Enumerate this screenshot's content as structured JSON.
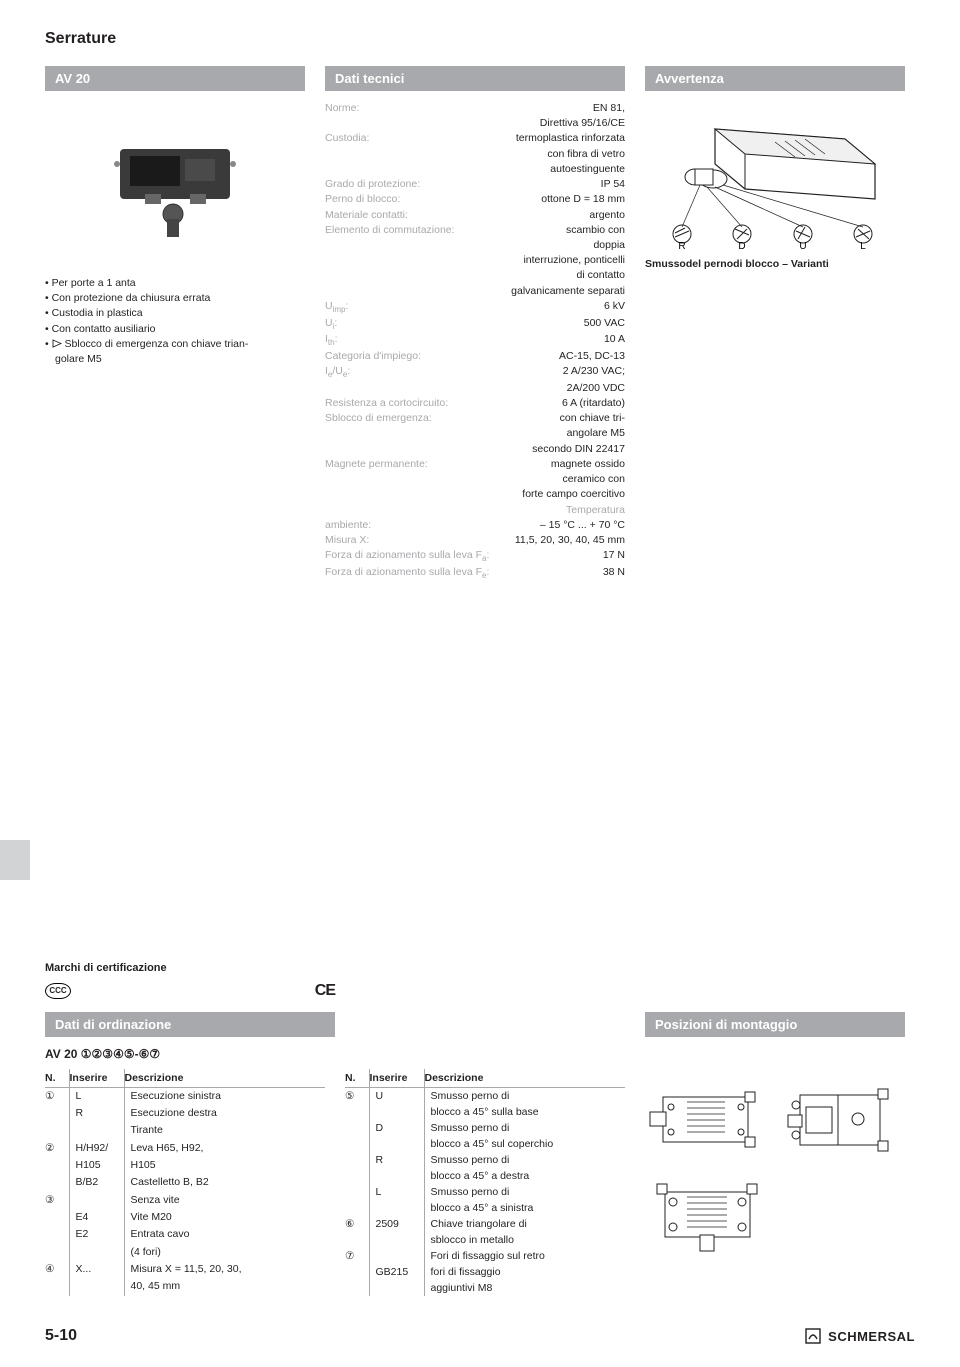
{
  "page_title": "Serrature",
  "left": {
    "header": "AV 20",
    "bullets": [
      "Per porte a 1 anta",
      "Con protezione da chiusura errata",
      "Custodia in plastica",
      "Con contatto ausiliario"
    ],
    "bullet_triangle": "Sblocco di emergenza con chiave trian-",
    "bullet_triangle_cont": "golare M5"
  },
  "mid": {
    "header": "Dati tecnici",
    "rows": [
      {
        "label": "Norme:",
        "value": "EN 81,"
      },
      {
        "label": "",
        "value": "Direttiva 95/16/CE"
      },
      {
        "label": "Custodia:",
        "value": "termoplastica rinforzata"
      },
      {
        "label": "",
        "value": "con fibra di vetro"
      },
      {
        "label": "",
        "value": "autoestinguente"
      },
      {
        "label": "Grado di protezione:",
        "value": "IP 54"
      },
      {
        "label": "Perno di blocco:",
        "value": "ottone D = 18 mm"
      },
      {
        "label": "Materiale contatti:",
        "value": "argento"
      },
      {
        "label": "Elemento di commutazione:",
        "value": "scambio con"
      },
      {
        "label": "",
        "value": "doppia"
      },
      {
        "label": "",
        "value": "interruzione, ponticelli"
      },
      {
        "label": "",
        "value": "di contatto"
      },
      {
        "label": "",
        "value": "galvanicamente separati"
      },
      {
        "label": "U<sub>imp</sub>:",
        "value": "6 kV"
      },
      {
        "label": "U<sub>i</sub>:",
        "value": "500 VAC"
      },
      {
        "label": "I<sub>th</sub>:",
        "value": "10 A"
      },
      {
        "label": "Categoria d'impiego:",
        "value": "AC-15, DC-13"
      },
      {
        "label": "I<sub>e</sub>/U<sub>e</sub>:",
        "value": "2 A/230 VAC;"
      },
      {
        "label": "",
        "value": "2A/200 VDC"
      },
      {
        "label": "Resistenza a cortocircuito:",
        "value": "6 A (ritardato)"
      },
      {
        "label": "Sblocco di emergenza:",
        "value": "con chiave tri-"
      },
      {
        "label": "",
        "value": "angolare M5"
      },
      {
        "label": "",
        "value": "secondo DIN 22417"
      },
      {
        "label": "Magnete permanente:",
        "value": "magnete ossido"
      },
      {
        "label": "",
        "value": "ceramico con"
      },
      {
        "label": "",
        "value": "forte campo coercitivo"
      }
    ],
    "temp_label": "Temperatura",
    "rows2": [
      {
        "label": "ambiente:",
        "value": "– 15 °C ... + 70 °C"
      },
      {
        "label": "Misura X:",
        "value": "11,5, 20, 30, 40, 45 mm"
      },
      {
        "label": "Forza di azionamento sulla leva F<sub>a</sub>:",
        "value": "17 N"
      },
      {
        "label": "Forza di azionamento sulla leva F<sub>e</sub>:",
        "value": "38 N"
      }
    ]
  },
  "right": {
    "header": "Avvertenza",
    "variant_labels": [
      "R",
      "D",
      "U",
      "L"
    ],
    "caption": "Smussodel pernodi blocco – Varianti"
  },
  "cert": {
    "title": "Marchi di certificazione",
    "ccc": "CCC",
    "ce": "CE"
  },
  "order": {
    "header": "Dati di ordinazione",
    "code": "AV 20 ①②③④⑤-⑥⑦",
    "th_n": "N.",
    "th_ins": "Inserire",
    "th_desc": "Descrizione",
    "left_rows": [
      {
        "n": "①",
        "ins": "L",
        "desc": "Esecuzione sinistra"
      },
      {
        "n": "",
        "ins": "R",
        "desc": "Esecuzione destra"
      },
      {
        "n": "",
        "ins": "",
        "desc": "Tirante"
      },
      {
        "n": "②",
        "ins": "H/H92/",
        "desc": "Leva H65, H92,"
      },
      {
        "n": "",
        "ins": "H105",
        "desc": "H105"
      },
      {
        "n": "",
        "ins": "B/B2",
        "desc": "Castelletto B, B2"
      },
      {
        "n": "③",
        "ins": "",
        "desc": "Senza vite"
      },
      {
        "n": "",
        "ins": "E4",
        "desc": "Vite M20"
      },
      {
        "n": "",
        "ins": "E2",
        "desc": "Entrata cavo"
      },
      {
        "n": "",
        "ins": "",
        "desc": "(4 fori)"
      },
      {
        "n": "④",
        "ins": "X...",
        "desc": "Misura X = 11,5, 20, 30,"
      },
      {
        "n": "",
        "ins": "",
        "desc": "40, 45 mm"
      }
    ],
    "right_rows": [
      {
        "n": "⑤",
        "ins": "U",
        "desc": "Smusso perno di"
      },
      {
        "n": "",
        "ins": "",
        "desc": "blocco a 45° sulla base"
      },
      {
        "n": "",
        "ins": "D",
        "desc": "Smusso perno di"
      },
      {
        "n": "",
        "ins": "",
        "desc": "blocco a 45° sul coperchio"
      },
      {
        "n": "",
        "ins": "R",
        "desc": "Smusso perno di"
      },
      {
        "n": "",
        "ins": "",
        "desc": "blocco a 45° a destra"
      },
      {
        "n": "",
        "ins": "L",
        "desc": "Smusso perno di"
      },
      {
        "n": "",
        "ins": "",
        "desc": "blocco a 45° a sinistra"
      },
      {
        "n": "⑥",
        "ins": "2509",
        "desc": "Chiave triangolare di"
      },
      {
        "n": "",
        "ins": "",
        "desc": "sblocco in metallo"
      },
      {
        "n": "⑦",
        "ins": "",
        "desc": "Fori di fissaggio sul retro"
      },
      {
        "n": "",
        "ins": "GB215",
        "desc": "fori di fissaggio"
      },
      {
        "n": "",
        "ins": "",
        "desc": "aggiuntivi M8"
      }
    ]
  },
  "mount": {
    "header": "Posizioni di montaggio"
  },
  "footer": {
    "page": "5-10",
    "logo": "SCHMERSAL"
  },
  "colors": {
    "header_bg": "#a7a9ac",
    "label_grey": "#a7a9ac",
    "text": "#231f20"
  }
}
